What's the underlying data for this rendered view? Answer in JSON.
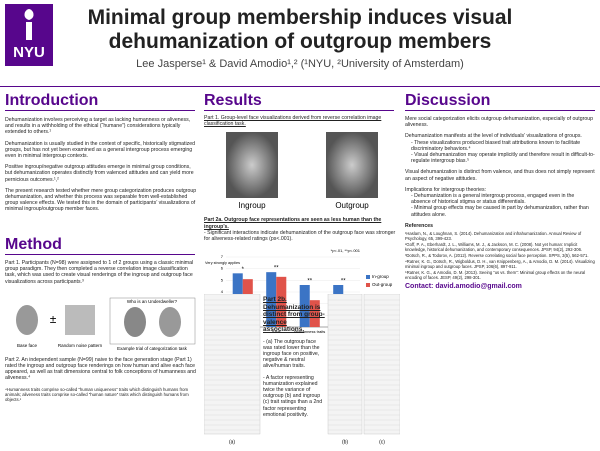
{
  "header": {
    "logo": "NYU",
    "title": [
      "Minimal group membership induces visual",
      "dehumanization of outgroup members"
    ],
    "authors": "Lee Jasperse¹ & David Amodio¹,² (¹NYU, ²University of Amsterdam)"
  },
  "intro": {
    "heading": "Introduction",
    "paragraphs": [
      "Dehumanization involves perceiving a target as lacking humanness or aliveness, and results in a withholding of the ethical (“humane”) considerations typically extended to others.¹",
      "Dehumanization is usually studied in the context of specific, historically stigmatized groups, but has not yet been examined as a general intergroup process emerging even in minimal intergroup contexts.",
      "Positive ingroup/negative outgroup attitudes emerge in minimal group conditions, but dehumanization operates distinctly from valenced attitudes and can yield more pernicious outcomes.¹,²",
      "The present research tested whether mere group categorization produces outgroup dehumanization, and whether this process was separable from well-established group valence effects. We tested this in the domain of participants’ visualizations of minimal ingroup/outgroup member faces."
    ]
  },
  "method": {
    "heading": "Method",
    "part1": "Part 1. Participants (N=98) were assigned to 1 of 2 groups using a classic minimal group paradigm. They then completed a reverse correlation image classification task, which was used to create visual renderings of the ingroup and outgroup face visualizations across participants.³",
    "figure_title": "Who is an Underdweller?",
    "figure_labels": [
      "Base face",
      "Random noise pattern",
      "Example trial of categorization task"
    ],
    "part2": "Part 2. An independent sample (N=99) naive to the face generation stage (Part 1) rated the ingroup and outgroup face renderings on how human and alive each face appeared, as well as trait dimensions central to folk conceptions of humanness and aliveness.⁴",
    "footnote": "⁴Humanness traits comprise so-called “human uniqueness” traits which distinguish humans from animals; aliveness traits comprise so-called “human nature” traits which distinguish humans from objects.¹"
  },
  "results": {
    "heading": "Results",
    "part1": "Part 1. Group-level face visualizations derived from reverse correlation image classification task.",
    "face_labels": [
      "Ingroup",
      "Outgroup"
    ],
    "part2a": "Part 2a. Outgroup face representations are seen as less human than the ingroup’s.",
    "part2a_note": "- Significant interactions indicate dehumanization of the outgroup face was stronger for aliveness-related ratings (ps<.001).",
    "chart": {
      "type": "bar",
      "y_label": "Very strongly applies",
      "categories": [
        "Human",
        "Alive",
        "Humanness traits",
        "Aliveness traits"
      ],
      "series": [
        {
          "name": "In-group",
          "color": "#3b74c5",
          "values": [
            5.6,
            5.7,
            4.6,
            4.6
          ]
        },
        {
          "name": "Out-group",
          "color": "#e0534a",
          "values": [
            5.1,
            5.3,
            3.3,
            3.2
          ]
        }
      ],
      "significance": [
        "*",
        "**",
        "**",
        "**"
      ],
      "annotation": "*p<.01, **p<.001",
      "ylim": [
        1,
        7
      ],
      "yticks": [
        1,
        2,
        3,
        4,
        5,
        6,
        7
      ],
      "legend": "right"
    },
    "part2b": {
      "heading": "Part 2b. Dehumanization is distinct from group-valence associations.",
      "bullets": [
        "- (a) The outgroup face was rated lower than the ingroup face on positive, negative & neutral alive/human traits.",
        "- A factor representing humanization explained twice the variance of outgroup (b) and ingroup (c) trait ratings than a 2nd factor representing emotional positivity."
      ],
      "table_captions": [
        "(a)",
        "(b)",
        "(c)"
      ]
    }
  },
  "discussion": {
    "heading": "Discussion",
    "paragraphs": [
      "Mere social categorization elicits outgroup dehumanization, especially of outgroup aliveness.",
      "Dehumanization manifests at the level of individuals’ visualizations of groups.",
      "Visual dehumanization is distinct from valence, and thus does not simply represent an aspect of negative attitudes.",
      "Implications for intergroup theories:"
    ],
    "bullets_a": [
      "- These visualizations produced biased trait attributions known to facilitate discriminatory behaviors.⁴",
      "- Visual dehumanization may operate implicitly and therefore result in difficult-to-regulate intergroup bias.⁵"
    ],
    "bullets_b": [
      "- Dehumanization is a general intergroup process, engaged even in the absence of historical stigma or status differentials.",
      "- Minimal group effects may be caused in part by dehumanization, rather than attitudes alone."
    ],
    "references_heading": "References",
    "references": [
      "¹Haslam, N., & Loughnan, S. (2014). Dehumanization and infrahumanization. Annual Review of Psychology, 65, 399-423.",
      "²Goff, P. A., Eberhardt, J. L., Williams, M. J., & Jackson, M. C. (2008). Not yet human: Implicit knowledge, historical dehumanization, and contemporary consequences. JPSP, 94(2), 292-306.",
      "³Dotsch, R., & Todorov, A. (2012). Reverse correlating social face perception. SPPS, 3(5), 562-571.",
      "⁴Ratner, K. G., Dotsch, R., Wigboldus, D. H., van Knippenberg, A., & Amodio, D. M. (2014). Visualizing minimal ingroup and outgroup faces. JPSP, 106(6), 897-911.",
      "⁵Ratner, K. G., & Amodio, D. M. (2013). Seeing “us vs. them”: Minimal group effects on the neural encoding of faces. JESP, 49(2), 298-301."
    ],
    "contact": "Contact: david.amodio@gmail.com"
  }
}
